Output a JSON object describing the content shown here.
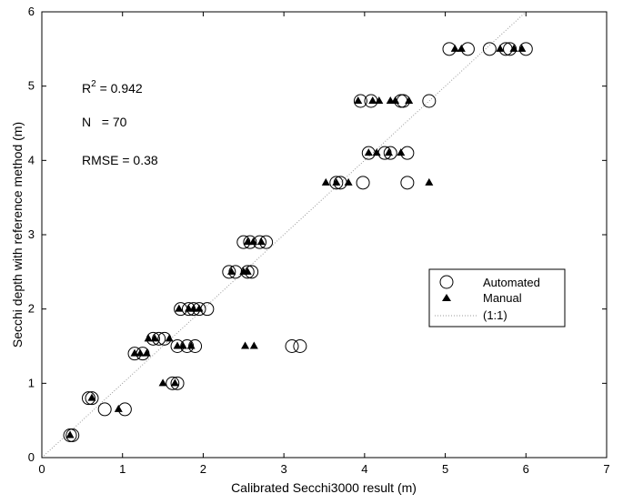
{
  "chart_data": {
    "type": "scatter",
    "xlabel": "Calibrated Secchi3000 result (m)",
    "ylabel": "Secchi depth with reference method (m)",
    "xlim": [
      0,
      7
    ],
    "ylim": [
      0,
      6
    ],
    "xticks": [
      "0",
      "1",
      "2",
      "3",
      "4",
      "5",
      "6",
      "7"
    ],
    "yticks": [
      "0",
      "1",
      "2",
      "3",
      "4",
      "5",
      "6"
    ],
    "grid": false,
    "legend_position": "right",
    "annotations": {
      "r2_label": "R",
      "r2_sup": "2",
      "r2_value": " = 0.942",
      "n_text": "N   = 70",
      "rmse_text": "RMSE = 0.38"
    },
    "series": [
      {
        "name": "Automated",
        "marker": "circle",
        "points": [
          [
            0.35,
            0.3
          ],
          [
            0.38,
            0.3
          ],
          [
            0.58,
            0.8
          ],
          [
            0.62,
            0.8
          ],
          [
            0.78,
            0.65
          ],
          [
            1.03,
            0.65
          ],
          [
            1.15,
            1.4
          ],
          [
            1.25,
            1.4
          ],
          [
            1.38,
            1.6
          ],
          [
            1.45,
            1.6
          ],
          [
            1.52,
            1.6
          ],
          [
            1.68,
            1.5
          ],
          [
            1.8,
            1.5
          ],
          [
            1.9,
            1.5
          ],
          [
            1.62,
            1.0
          ],
          [
            1.68,
            1.0
          ],
          [
            1.72,
            2.0
          ],
          [
            1.82,
            2.0
          ],
          [
            1.88,
            2.0
          ],
          [
            1.95,
            2.0
          ],
          [
            2.05,
            2.0
          ],
          [
            2.32,
            2.5
          ],
          [
            2.4,
            2.5
          ],
          [
            2.55,
            2.5
          ],
          [
            2.6,
            2.5
          ],
          [
            2.5,
            2.9
          ],
          [
            2.58,
            2.9
          ],
          [
            2.7,
            2.9
          ],
          [
            2.78,
            2.9
          ],
          [
            3.1,
            1.5
          ],
          [
            3.2,
            1.5
          ],
          [
            3.65,
            3.7
          ],
          [
            3.7,
            3.7
          ],
          [
            3.98,
            3.7
          ],
          [
            4.53,
            3.7
          ],
          [
            4.05,
            4.1
          ],
          [
            4.25,
            4.1
          ],
          [
            4.32,
            4.1
          ],
          [
            4.53,
            4.1
          ],
          [
            3.95,
            4.8
          ],
          [
            4.08,
            4.8
          ],
          [
            4.45,
            4.8
          ],
          [
            4.48,
            4.8
          ],
          [
            4.8,
            4.8
          ],
          [
            5.05,
            5.5
          ],
          [
            5.28,
            5.5
          ],
          [
            5.55,
            5.5
          ],
          [
            5.75,
            5.5
          ],
          [
            5.8,
            5.5
          ],
          [
            6.0,
            5.5
          ]
        ]
      },
      {
        "name": "Manual",
        "marker": "triangle",
        "points": [
          [
            0.35,
            0.3
          ],
          [
            0.62,
            0.8
          ],
          [
            0.95,
            0.65
          ],
          [
            1.15,
            1.4
          ],
          [
            1.22,
            1.4
          ],
          [
            1.3,
            1.4
          ],
          [
            1.32,
            1.6
          ],
          [
            1.4,
            1.6
          ],
          [
            1.58,
            1.6
          ],
          [
            1.5,
            1.0
          ],
          [
            1.65,
            1.0
          ],
          [
            1.68,
            1.5
          ],
          [
            1.75,
            1.5
          ],
          [
            1.85,
            1.5
          ],
          [
            1.7,
            2.0
          ],
          [
            1.82,
            2.0
          ],
          [
            1.88,
            2.0
          ],
          [
            1.95,
            2.0
          ],
          [
            2.35,
            2.5
          ],
          [
            2.5,
            2.5
          ],
          [
            2.55,
            2.5
          ],
          [
            2.55,
            2.9
          ],
          [
            2.62,
            2.9
          ],
          [
            2.72,
            2.9
          ],
          [
            2.52,
            1.5
          ],
          [
            2.63,
            1.5
          ],
          [
            3.52,
            3.7
          ],
          [
            3.65,
            3.7
          ],
          [
            3.8,
            3.7
          ],
          [
            4.8,
            3.7
          ],
          [
            4.05,
            4.1
          ],
          [
            4.15,
            4.1
          ],
          [
            4.3,
            4.1
          ],
          [
            4.45,
            4.1
          ],
          [
            3.92,
            4.8
          ],
          [
            4.1,
            4.8
          ],
          [
            4.18,
            4.8
          ],
          [
            4.32,
            4.8
          ],
          [
            4.38,
            4.8
          ],
          [
            4.55,
            4.8
          ],
          [
            5.12,
            5.5
          ],
          [
            5.2,
            5.5
          ],
          [
            5.68,
            5.5
          ],
          [
            5.85,
            5.5
          ],
          [
            5.95,
            5.5
          ]
        ]
      },
      {
        "name": "(1:1)",
        "line": "dotted",
        "points": [
          [
            0,
            0
          ],
          [
            6,
            6
          ]
        ]
      }
    ]
  }
}
